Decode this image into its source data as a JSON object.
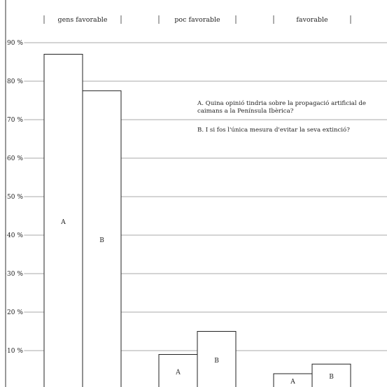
{
  "chart_data": {
    "type": "bar",
    "categories": [
      "gens favorable",
      "poc favorable",
      "favorable"
    ],
    "series": [
      {
        "name": "A",
        "values": [
          87,
          9,
          4
        ]
      },
      {
        "name": "B",
        "values": [
          77.5,
          15,
          6.5
        ]
      }
    ],
    "y_ticks": [
      "90 %",
      "80 %",
      "70 %",
      "60 %",
      "50 %",
      "40 %",
      "30 %",
      "20 %",
      "10 %"
    ],
    "y_tick_values": [
      90,
      80,
      70,
      60,
      50,
      40,
      30,
      20,
      10
    ],
    "ylim": [
      0,
      100
    ],
    "grid": true,
    "legend_position": "top-right",
    "annotations": [
      "A. Quina opinió tindria sobre la propagació artificial de caimans a la Península Ibèrica?",
      "B. I si fos l'única mesura d'evitar la seva extinció?"
    ],
    "title": "",
    "xlabel": "",
    "ylabel": ""
  }
}
